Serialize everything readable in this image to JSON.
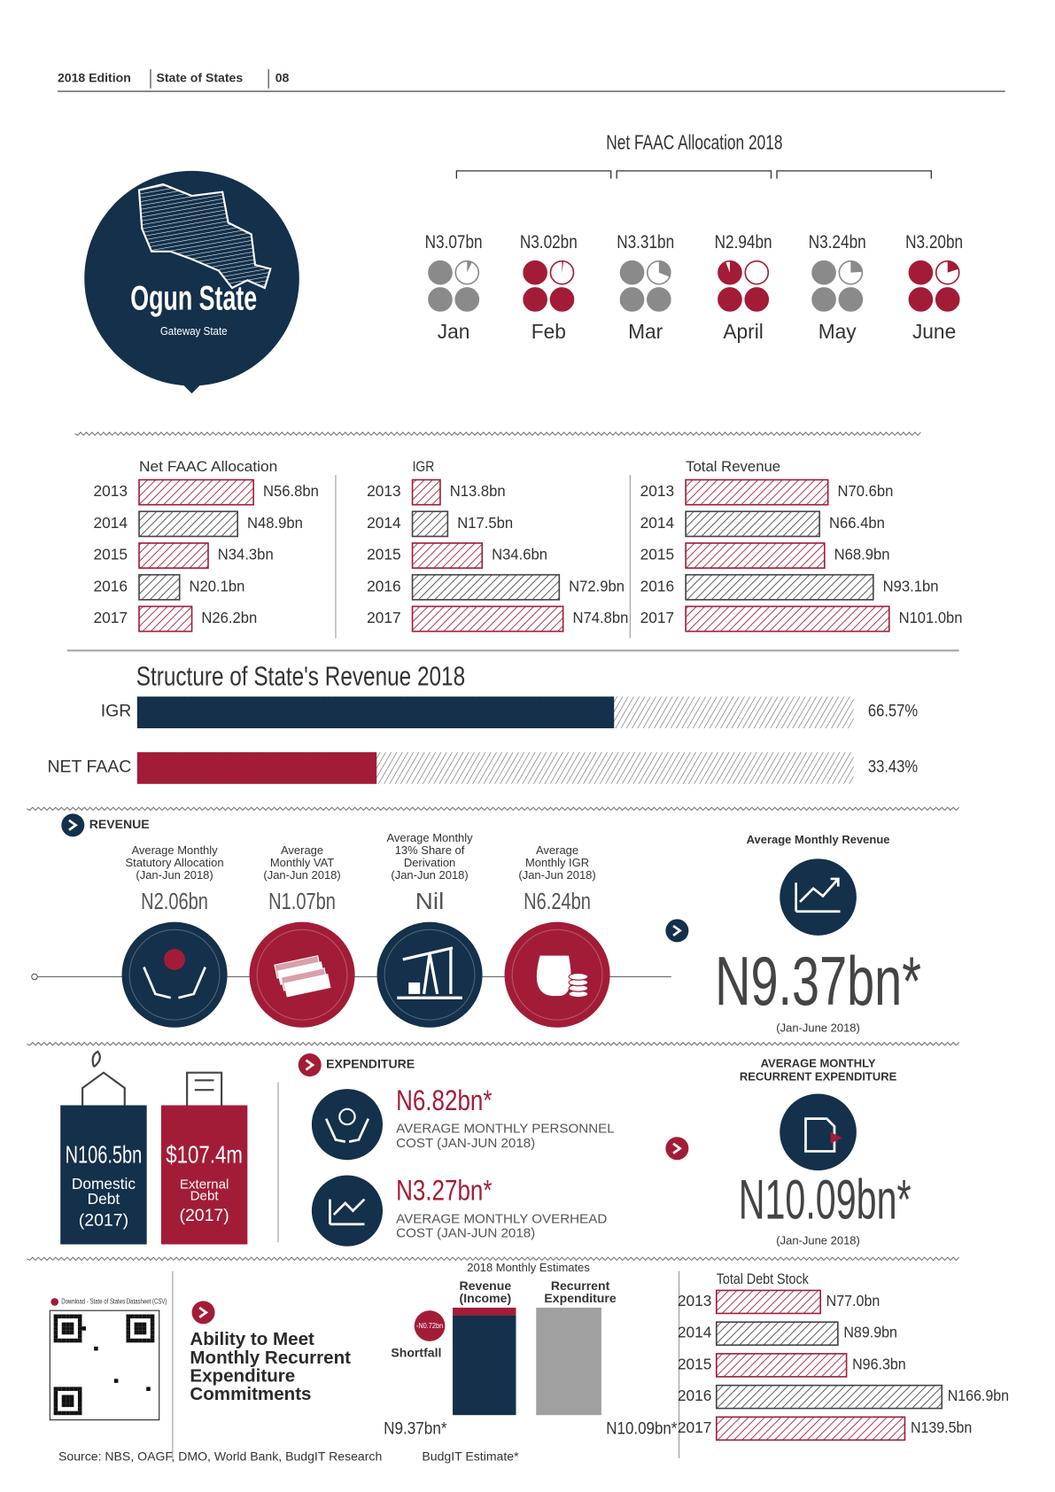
{
  "header": {
    "edition": "2018 Edition",
    "publication": "State of States",
    "page": "08"
  },
  "state": {
    "name": "Ogun State",
    "tagline": "Gateway State"
  },
  "faac_2018": {
    "title": "Net FAAC Allocation 2018",
    "months": [
      {
        "month": "Jan",
        "value": 3.07,
        "label": "N3.07bn"
      },
      {
        "month": "Feb",
        "value": 3.02,
        "label": "N3.02bn"
      },
      {
        "month": "Mar",
        "value": 3.31,
        "label": "N3.31bn"
      },
      {
        "month": "April",
        "value": 2.94,
        "label": "N2.94bn"
      },
      {
        "month": "May",
        "value": 3.24,
        "label": "N3.24bn"
      },
      {
        "month": "June",
        "value": 3.2,
        "label": "N3.20bn"
      }
    ]
  },
  "history": [
    {
      "title": "Net FAAC Allocation",
      "rows": [
        {
          "year": "2013",
          "value": 56.8,
          "label": "N56.8bn"
        },
        {
          "year": "2014",
          "value": 48.9,
          "label": "N48.9bn"
        },
        {
          "year": "2015",
          "value": 34.3,
          "label": "N34.3bn"
        },
        {
          "year": "2016",
          "value": 20.1,
          "label": "N20.1bn"
        },
        {
          "year": "2017",
          "value": 26.2,
          "label": "N26.2bn"
        }
      ]
    },
    {
      "title": "IGR",
      "rows": [
        {
          "year": "2013",
          "value": 13.8,
          "label": "N13.8bn"
        },
        {
          "year": "2014",
          "value": 17.5,
          "label": "N17.5bn"
        },
        {
          "year": "2015",
          "value": 34.6,
          "label": "N34.6bn"
        },
        {
          "year": "2016",
          "value": 72.9,
          "label": "N72.9bn"
        },
        {
          "year": "2017",
          "value": 74.8,
          "label": "N74.8bn"
        }
      ]
    },
    {
      "title": "Total Revenue",
      "rows": [
        {
          "year": "2013",
          "value": 70.6,
          "label": "N70.6bn"
        },
        {
          "year": "2014",
          "value": 66.4,
          "label": "N66.4bn"
        },
        {
          "year": "2015",
          "value": 68.9,
          "label": "N68.9bn"
        },
        {
          "year": "2016",
          "value": 93.1,
          "label": "N93.1bn"
        },
        {
          "year": "2017",
          "value": 101.0,
          "label": "N101.0bn"
        }
      ]
    }
  ],
  "structure": {
    "title": "Structure of State's Revenue 2018",
    "items": [
      {
        "name": "IGR",
        "value": 66.57,
        "label": "66.57%"
      },
      {
        "name": "NET FAAC",
        "value": 33.43,
        "label": "33.43%"
      }
    ]
  },
  "revenue": {
    "heading": "REVENUE",
    "items": [
      {
        "lines": [
          "Average Monthly",
          "Statutory Allocation",
          "(Jan-Jun 2018)"
        ],
        "value": "N2.06bn"
      },
      {
        "lines": [
          "Average",
          "Monthly VAT",
          "(Jan-Jun 2018)"
        ],
        "value": "N1.07bn"
      },
      {
        "lines": [
          "Average Monthly",
          "13% Share of",
          "Derivation",
          "(Jan-Jun 2018)"
        ],
        "value": "Nil"
      },
      {
        "lines": [
          "Average",
          "Monthly IGR",
          "(Jan-Jun 2018)"
        ],
        "value": "N6.24bn"
      }
    ],
    "average": {
      "title": "Average Monthly Revenue",
      "value": "N9.37bn*",
      "period": "(Jan-June 2018)"
    }
  },
  "debt": [
    {
      "value": "N106.5bn",
      "lines": [
        "Domestic",
        "Debt"
      ],
      "year": "(2017)"
    },
    {
      "value": "$107.4m",
      "lines": [
        "External",
        "Debt"
      ],
      "year": "(2017)"
    }
  ],
  "expenditure": {
    "heading": "EXPENDITURE",
    "items": [
      {
        "value": "N6.82bn*",
        "lines": [
          "AVERAGE MONTHLY PERSONNEL",
          "COST (JAN-JUN 2018)"
        ]
      },
      {
        "value": "N3.27bn*",
        "lines": [
          "AVERAGE MONTHLY OVERHEAD",
          "COST (JAN-JUN 2018)"
        ]
      }
    ],
    "average": {
      "title": [
        "AVERAGE MONTHLY",
        "RECURRENT EXPENDITURE"
      ],
      "value": "N10.09bn*",
      "period": "(Jan-June 2018)"
    }
  },
  "ability": {
    "qr_caption": "Download - State of States Datasheet (CSV)",
    "title": [
      "Ability to Meet",
      "Monthly Recurrent",
      "Expenditure",
      "Commitments"
    ],
    "estimates_title": "2018 Monthly Estimates",
    "revenue": {
      "name": [
        "Revenue",
        "(Income)"
      ],
      "value": 9.37,
      "label": "N9.37bn*"
    },
    "expenditure": {
      "name": [
        "Recurrent",
        "Expenditure"
      ],
      "value": 10.09,
      "label": "N10.09bn*"
    },
    "shortfall": {
      "name": "Shortfall",
      "value": -0.72,
      "label": "-N0.72bn"
    }
  },
  "debt_stock": {
    "title": "Total Debt Stock",
    "rows": [
      {
        "year": "2013",
        "value": 77.0,
        "label": "N77.0bn"
      },
      {
        "year": "2014",
        "value": 89.9,
        "label": "N89.9bn"
      },
      {
        "year": "2015",
        "value": 96.3,
        "label": "N96.3bn"
      },
      {
        "year": "2016",
        "value": 166.9,
        "label": "N166.9bn"
      },
      {
        "year": "2017",
        "value": 139.5,
        "label": "N139.5bn"
      }
    ]
  },
  "footer": {
    "source": "Source: NBS, OAGF, DMO, World Bank, BudgIT Research",
    "estimate": "BudgIT Estimate*"
  }
}
